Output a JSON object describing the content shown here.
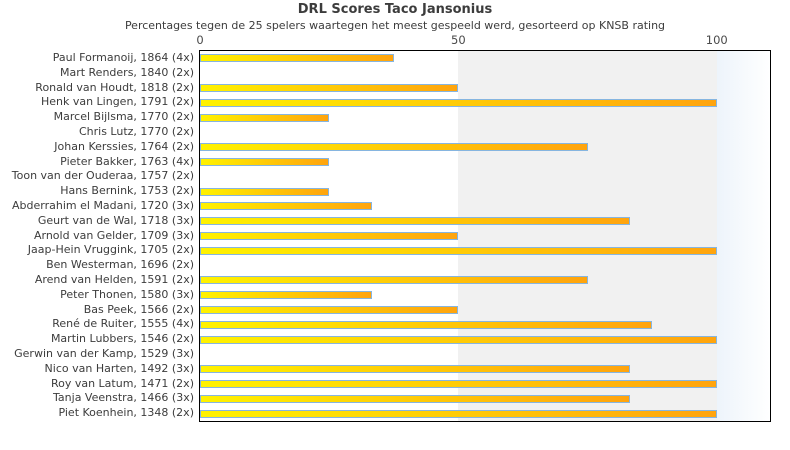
{
  "colors": {
    "bar_gradient_start": "#fff200",
    "bar_gradient_end": "#ffa40e",
    "bar_border": "#86b5e0",
    "band_gray": "#f1f1f1",
    "band_blue_tint": "#edf4fb",
    "plot_border": "#000000",
    "title_text": "#3c3c3c",
    "tick_text": "#4a4a4a"
  },
  "chart_data": {
    "type": "bar",
    "orientation": "horizontal",
    "title": "DRL Scores Taco Jansonius",
    "subtitle": "Percentages tegen de 25 spelers waartegen het meest gespeeld werd, gesorteerd op KNSB rating",
    "xlabel": "",
    "ylabel": "",
    "xlim": [
      0,
      110.3
    ],
    "xticks": [
      0,
      50,
      100
    ],
    "grid": "alternating vertical bands every 50 units, pale blue gradient band beyond 100",
    "legend": "none",
    "categories": [
      "Paul Formanoij, 1864 (4x)",
      "Mart Renders, 1840 (2x)",
      "Ronald van Houdt, 1818 (2x)",
      "Henk van Lingen, 1791 (2x)",
      "Marcel Bijlsma, 1770 (2x)",
      "Chris Lutz, 1770 (2x)",
      "Johan Kerssies, 1764 (2x)",
      "Pieter Bakker, 1763 (4x)",
      "Toon van der Ouderaa, 1757 (2x)",
      "Hans Bernink, 1753 (2x)",
      "Abderrahim el Madani, 1720 (3x)",
      "Geurt van de Wal, 1718 (3x)",
      "Arnold van Gelder, 1709 (3x)",
      "Jaap-Hein Vruggink, 1705 (2x)",
      "Ben Westerman, 1696 (2x)",
      "Arend van Helden, 1591 (2x)",
      "Peter Thonen, 1580 (3x)",
      "Bas Peek, 1566 (2x)",
      "René de Ruiter, 1555 (4x)",
      "Martin Lubbers, 1546 (2x)",
      "Gerwin van der Kamp, 1529 (3x)",
      "Nico van Harten, 1492 (3x)",
      "Roy van Latum, 1471 (2x)",
      "Tanja Veenstra, 1466 (3x)",
      "Piet Koenhein, 1348 (2x)"
    ],
    "values": [
      37.5,
      0,
      50,
      100,
      25,
      0,
      75,
      25,
      0,
      25,
      33.3,
      83.3,
      50,
      100,
      0,
      75,
      33.3,
      50,
      87.5,
      100,
      0,
      83.3,
      100,
      83.3,
      100
    ]
  }
}
